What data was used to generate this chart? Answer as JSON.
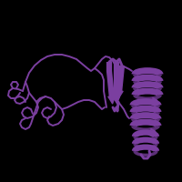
{
  "background_color": "#000000",
  "protein_color": "#7b3fa0",
  "figsize": [
    2.0,
    2.0
  ],
  "dpi": 100,
  "loop_lw": 1.4,
  "helix_lw": 4.5,
  "strand_lw": 5.0
}
